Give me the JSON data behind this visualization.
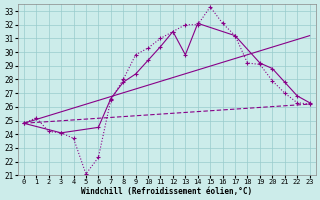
{
  "xlabel": "Windchill (Refroidissement éolien,°C)",
  "xlim": [
    -0.5,
    23.5
  ],
  "ylim": [
    21,
    33.5
  ],
  "yticks": [
    21,
    22,
    23,
    24,
    25,
    26,
    27,
    28,
    29,
    30,
    31,
    32,
    33
  ],
  "xticks": [
    0,
    1,
    2,
    3,
    4,
    5,
    6,
    7,
    8,
    9,
    10,
    11,
    12,
    13,
    14,
    15,
    16,
    17,
    18,
    19,
    20,
    21,
    22,
    23
  ],
  "bg_color": "#ccecea",
  "line_color": "#880088",
  "grid_color": "#99cccc",
  "series": [
    {
      "x": [
        0,
        1,
        2,
        3,
        4,
        5,
        6,
        7,
        8,
        9,
        10,
        11,
        12,
        13,
        14,
        15,
        16,
        17,
        18,
        19,
        20,
        21,
        22,
        23
      ],
      "y": [
        24.8,
        25.2,
        24.2,
        24.1,
        23.7,
        21.1,
        22.3,
        26.5,
        28.0,
        29.8,
        30.3,
        31.0,
        31.5,
        32.0,
        32.0,
        33.3,
        32.1,
        31.2,
        29.2,
        29.1,
        27.9,
        27.0,
        26.3,
        26.2
      ],
      "style": "dotted_marker"
    },
    {
      "x": [
        0,
        3,
        6,
        7,
        8,
        9,
        10,
        11,
        12,
        13,
        14,
        17,
        19,
        20,
        21,
        22,
        23
      ],
      "y": [
        24.8,
        24.1,
        24.5,
        26.6,
        27.8,
        28.4,
        29.4,
        30.4,
        31.5,
        29.8,
        32.1,
        31.2,
        29.2,
        28.8,
        27.8,
        26.8,
        26.3
      ],
      "style": "solid_marker"
    },
    {
      "x": [
        0,
        23
      ],
      "y": [
        24.8,
        31.2
      ],
      "style": "straight"
    },
    {
      "x": [
        0,
        23
      ],
      "y": [
        24.8,
        26.2
      ],
      "style": "straight_dash"
    }
  ]
}
